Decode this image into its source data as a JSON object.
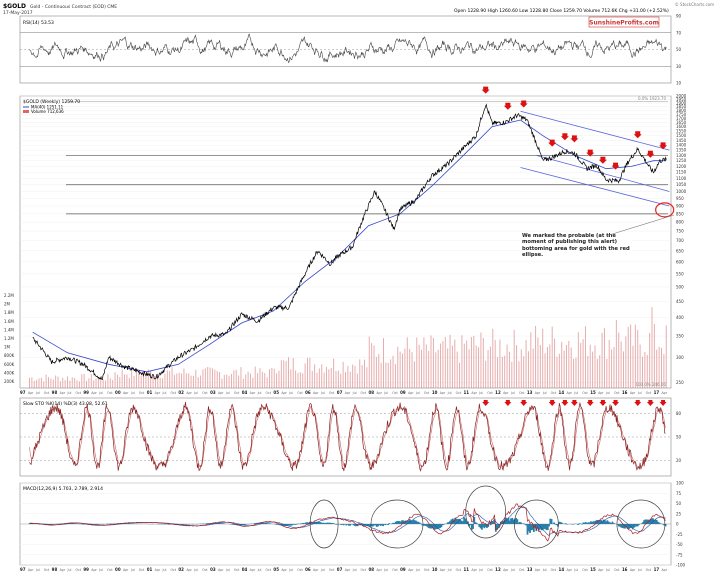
{
  "header": {
    "symbol": "$GOLD",
    "description": "Gold - Continuous Contract (EOD) CME",
    "date": "17-May-2017",
    "quote": "Open 1228.90  High 1260.60  Low 1228.80  Close 1259.70  Volume 712.6K  Chg +31.00 (+2.52%)",
    "brand": "SunshineProfits.com",
    "stockcharts": "© StockCharts.com"
  },
  "annotation": "We marked the probable (at the moment of publishing this alert) bottoming area for gold with the red ellipse.",
  "colors": {
    "price_line": "#000000",
    "ma": "#3344cc",
    "channel": "#5566dd",
    "arrow": "#dd1111",
    "ellipse": "#ee2222",
    "rsi": "#444444",
    "stoch_k": "#882222",
    "stoch_d": "#cc6666",
    "macd": "#aa2222",
    "signal": "#2255aa",
    "hist": "#2a7fa8",
    "volume": "#d46a6a"
  },
  "chart_data": [
    {
      "type": "line",
      "name": "rsi-panel",
      "title": "RSI(14) 53.53",
      "ylim": [
        10,
        90
      ],
      "yticks": [
        70,
        50,
        30
      ],
      "ticks_right": [
        "90",
        "70",
        "50",
        "30",
        "10"
      ]
    },
    {
      "type": "line",
      "name": "price-panel",
      "title": "$GOLD (Weekly) 1259.70",
      "legend": [
        "MA(40) 1251.11",
        "Volume 712,636"
      ],
      "log_scale": true,
      "ylim": [
        240,
        2000
      ],
      "yticks": [
        250,
        300,
        350,
        400,
        450,
        500,
        550,
        600,
        650,
        700,
        750,
        800,
        850,
        900,
        950,
        1000,
        1050,
        1100,
        1150,
        1200,
        1250,
        1300,
        1350,
        1400,
        1450,
        1500,
        1550,
        1600,
        1650,
        1700,
        1750,
        1800,
        1850,
        1900,
        1950,
        2000
      ],
      "volume_ticks": [
        "2.2M",
        "2M",
        "1.8M",
        "1.6M",
        "1.4M",
        "1.2M",
        "1M",
        "800K",
        "600K",
        "400K",
        "200K"
      ],
      "fib_labels": [
        "0.0% 1923.70",
        "100.0% 246.00"
      ],
      "x": [
        1997.4,
        1998.0,
        1998.5,
        1999.0,
        1999.6,
        1999.8,
        2000.3,
        2001.0,
        2001.3,
        2002.0,
        2002.5,
        2003.0,
        2003.5,
        2004.0,
        2004.5,
        2005.0,
        2005.5,
        2006.0,
        2006.4,
        2006.8,
        2007.0,
        2007.5,
        2008.0,
        2008.2,
        2008.8,
        2009.0,
        2009.5,
        2010.0,
        2010.5,
        2011.0,
        2011.4,
        2011.7,
        2011.9,
        2012.3,
        2012.7,
        2013.0,
        2013.3,
        2013.5,
        2013.8,
        2014.2,
        2014.5,
        2014.9,
        2015.2,
        2015.5,
        2015.9,
        2016.2,
        2016.5,
        2016.9,
        2017.0,
        2017.2,
        2017.4
      ],
      "y": [
        345,
        290,
        300,
        285,
        255,
        300,
        280,
        265,
        260,
        300,
        320,
        350,
        355,
        410,
        390,
        430,
        430,
        550,
        650,
        590,
        620,
        670,
        900,
        1000,
        760,
        880,
        940,
        1120,
        1220,
        1370,
        1500,
        1880,
        1640,
        1650,
        1740,
        1680,
        1420,
        1250,
        1280,
        1340,
        1320,
        1180,
        1210,
        1090,
        1080,
        1240,
        1360,
        1180,
        1150,
        1250,
        1259.7
      ],
      "ma_x": [
        1997.4,
        1998.5,
        1999.8,
        2001.0,
        2002.0,
        2003.0,
        2004.0,
        2005.0,
        2006.0,
        2007.0,
        2008.0,
        2009.0,
        2010.0,
        2011.0,
        2011.9,
        2012.8,
        2013.5,
        2014.5,
        2015.5,
        2016.3,
        2017.0,
        2017.4
      ],
      "ma_y": [
        360,
        310,
        285,
        270,
        285,
        330,
        385,
        420,
        520,
        620,
        780,
        850,
        1040,
        1300,
        1600,
        1680,
        1500,
        1300,
        1180,
        1200,
        1250,
        1251.11
      ],
      "levels": [
        1300,
        1050,
        850
      ],
      "arrows_x": [
        2011.7,
        2012.4,
        2012.9,
        2013.8,
        2014.2,
        2014.5,
        2015.0,
        2015.4,
        2015.8,
        2016.5,
        2016.9,
        2017.3
      ],
      "channel": [
        {
          "x": [
            2012.8,
            2017.5
          ],
          "y": [
            1790,
            1350
          ]
        },
        {
          "x": [
            2013.3,
            2017.5
          ],
          "y": [
            1300,
            1000
          ]
        },
        {
          "x": [
            2012.8,
            2017.5
          ],
          "y": [
            1190,
            900
          ]
        }
      ],
      "ellipse_center": [
        2017.35,
        875
      ]
    },
    {
      "type": "line",
      "name": "stochastic-panel",
      "title": "Slow STO %K(14) %D(3) 43.08, 52.61",
      "ylim": [
        0,
        100
      ],
      "yticks": [
        80,
        50,
        20
      ],
      "ticks_right": [
        "80",
        "50",
        "20"
      ]
    },
    {
      "type": "bar",
      "name": "macd-panel",
      "title": "MACD(12,26,9) 5.703, 2.789, 2.914",
      "ylim": [
        -100,
        100
      ],
      "yticks": [
        100,
        75,
        50,
        25,
        0,
        -25,
        -50,
        -75,
        -100
      ],
      "ellipses_x": [
        2006.6,
        2008.9,
        2011.7,
        2013.3,
        2016.6
      ]
    }
  ],
  "x_axis": {
    "years": [
      "97",
      "98",
      "99",
      "00",
      "01",
      "02",
      "03",
      "04",
      "05",
      "06",
      "07",
      "08",
      "09",
      "10",
      "11",
      "12",
      "13",
      "14",
      "15",
      "16",
      "17"
    ],
    "month_labels": [
      "Apr",
      "Jul",
      "Oct"
    ]
  }
}
